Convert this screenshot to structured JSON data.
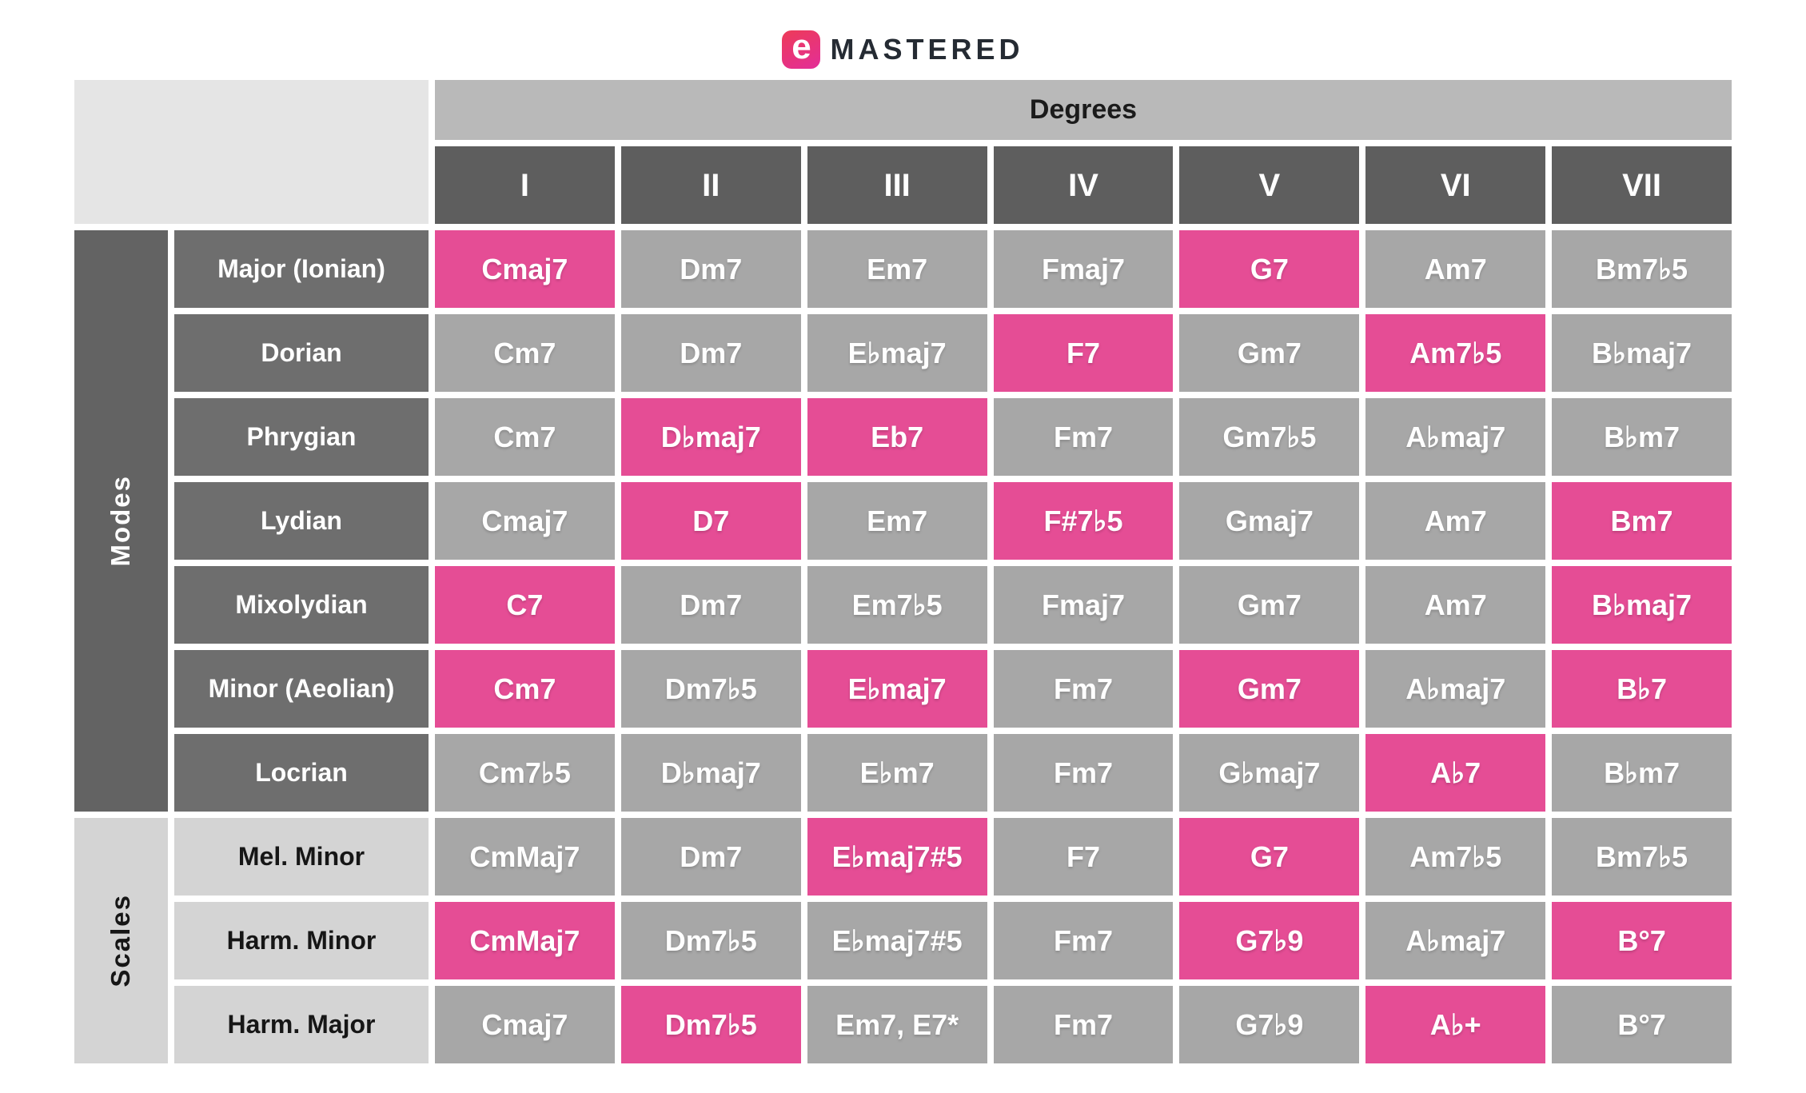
{
  "brand": {
    "logo_letter": "e",
    "logo_text": "MASTERED"
  },
  "colors": {
    "highlight": "#e54d95",
    "cell_gray": "#a7a7a7",
    "header_dark": "#5e5e5e",
    "mode_label": "#6e6e6e",
    "modes_sidebar": "#636363",
    "scale_label": "#d4d4d4",
    "degrees_bar": "#b9b9b9",
    "corner_bg": "#e5e5e5",
    "brand_text": "#252b33"
  },
  "chart_data": {
    "type": "table",
    "title": "Degrees",
    "column_headers": [
      "I",
      "II",
      "III",
      "IV",
      "V",
      "VI",
      "VII"
    ],
    "highlight_color": "#e54d95",
    "row_groups": [
      {
        "group": "Modes",
        "rows": [
          {
            "label": "Major (Ionian)",
            "cells": [
              "Cmaj7",
              "Dm7",
              "Em7",
              "Fmaj7",
              "G7",
              "Am7",
              "Bm7♭5"
            ],
            "highlighted": [
              0,
              4
            ]
          },
          {
            "label": "Dorian",
            "cells": [
              "Cm7",
              "Dm7",
              "E♭maj7",
              "F7",
              "Gm7",
              "Am7♭5",
              "B♭maj7"
            ],
            "highlighted": [
              3,
              5
            ]
          },
          {
            "label": "Phrygian",
            "cells": [
              "Cm7",
              "D♭maj7",
              "Eb7",
              "Fm7",
              "Gm7♭5",
              "A♭maj7",
              "B♭m7"
            ],
            "highlighted": [
              1,
              2
            ]
          },
          {
            "label": "Lydian",
            "cells": [
              "Cmaj7",
              "D7",
              "Em7",
              "F#7♭5",
              "Gmaj7",
              "Am7",
              "Bm7"
            ],
            "highlighted": [
              1,
              3,
              6
            ]
          },
          {
            "label": "Mixolydian",
            "cells": [
              "C7",
              "Dm7",
              "Em7♭5",
              "Fmaj7",
              "Gm7",
              "Am7",
              "B♭maj7"
            ],
            "highlighted": [
              0,
              6
            ]
          },
          {
            "label": "Minor (Aeolian)",
            "cells": [
              "Cm7",
              "Dm7♭5",
              "E♭maj7",
              "Fm7",
              "Gm7",
              "A♭maj7",
              "B♭7"
            ],
            "highlighted": [
              0,
              2,
              4,
              6
            ]
          },
          {
            "label": "Locrian",
            "cells": [
              "Cm7♭5",
              "D♭maj7",
              "E♭m7",
              "Fm7",
              "G♭maj7",
              "A♭7",
              "B♭m7"
            ],
            "highlighted": [
              5
            ]
          }
        ]
      },
      {
        "group": "Scales",
        "rows": [
          {
            "label": "Mel. Minor",
            "cells": [
              "CmMaj7",
              "Dm7",
              "E♭maj7#5",
              "F7",
              "G7",
              "Am7♭5",
              "Bm7♭5"
            ],
            "highlighted": [
              2,
              4
            ]
          },
          {
            "label": "Harm. Minor",
            "cells": [
              "CmMaj7",
              "Dm7♭5",
              "E♭maj7#5",
              "Fm7",
              "G7♭9",
              "A♭maj7",
              "B°7"
            ],
            "highlighted": [
              0,
              4,
              6
            ]
          },
          {
            "label": "Harm. Major",
            "cells": [
              "Cmaj7",
              "Dm7♭5",
              "Em7, E7*",
              "Fm7",
              "G7♭9",
              "A♭+",
              "B°7"
            ],
            "highlighted": [
              1,
              5
            ]
          }
        ]
      }
    ]
  }
}
